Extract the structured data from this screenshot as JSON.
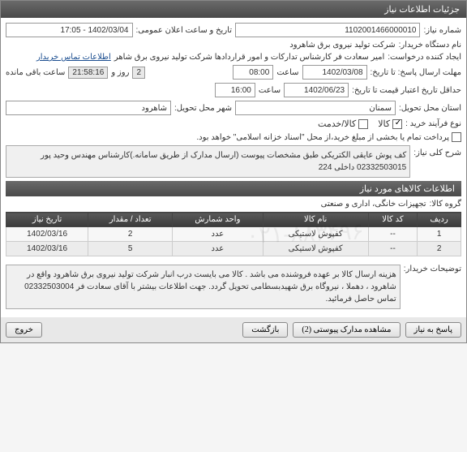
{
  "panel": {
    "title": "جزئیات اطلاعات نیاز"
  },
  "fields": {
    "need_no_label": "شماره نیاز:",
    "need_no": "1102001466000010",
    "announce_label": "تاریخ و ساعت اعلان عمومی:",
    "announce_value": "1402/03/04 - 17:05",
    "buyer_label": "نام دستگاه خریدار:",
    "buyer_value": "شرکت تولید نیروی برق شاهرود",
    "requester_label": "ایجاد کننده درخواست:",
    "requester_value": "امیر سعادت فر کارشناس تدارکات و امور قراردادها شرکت تولید نیروی برق شاهر",
    "contact_link": "اطلاعات تماس خریدار",
    "deadline_label": "مهلت ارسال پاسخ: تا تاریخ:",
    "deadline_date": "1402/03/08",
    "deadline_time_label": "ساعت",
    "deadline_time": "08:00",
    "countdown_days": "2",
    "countdown_days_label": "روز و",
    "countdown_time": "21:58:16",
    "countdown_remain": "ساعت باقی مانده",
    "validity_label": "حداقل تاریخ اعتبار قیمت تا تاریخ:",
    "validity_date": "1402/06/23",
    "validity_time_label": "ساعت",
    "validity_time": "16:00",
    "province_label": "استان محل تحویل:",
    "province_value": "سمنان",
    "city_label": "شهر محل تحویل:",
    "city_value": "شاهرود",
    "purchase_type_label": "نوع فرآیند خرید :",
    "chk_goods": "کالا",
    "chk_service": "کالا/خدمت",
    "payment_note": "پرداخت تمام یا بخشی از مبلغ خرید،از محل \"اسناد خزانه اسلامی\" خواهد بود.",
    "desc_label": "شرح کلی نیاز:",
    "desc_text": "کف پوش عایقی الکتریکی طبق مشخصات پیوست (ارسال مدارک از طریق سامانه.)کارشناس مهندس وحید پور 02332503015 داخلی 224"
  },
  "items_header": "اطلاعات کالاهای مورد نیاز",
  "group_label": "گروه کالا:",
  "group_value": "تجهیزات خانگی، اداری و صنعتی",
  "table": {
    "cols": [
      "ردیف",
      "کد کالا",
      "نام کالا",
      "واحد شمارش",
      "تعداد / مقدار",
      "تاریخ نیاز"
    ],
    "rows": [
      [
        "1",
        "--",
        "کفپوش لاستیکی",
        "عدد",
        "2",
        "1402/03/16"
      ],
      [
        "2",
        "--",
        "کفپوش لاستیکی",
        "عدد",
        "5",
        "1402/03/16"
      ]
    ]
  },
  "notes_label": "توضیحات خریدار:",
  "notes_text": "هزینه ارسال کالا بر عهده فروشنده می باشد . کالا می بایست درب انبار شرکت تولید نیروی برق شاهرود واقع در شاهرود ، دهملا ، نیروگاه برق شهیدبسطامی تحویل گردد. جهت اطلاعات بیشتر با آقای سعادت فر 02332503004 تماس حاصل فرمائید.",
  "buttons": {
    "reply": "پاسخ به نیاز",
    "attachments": "مشاهده مدارک پیوستی (2)",
    "print": "بازگشت",
    "back": "خروج"
  },
  "watermark": "۰۲۱-۸۸۳۴۹۶"
}
